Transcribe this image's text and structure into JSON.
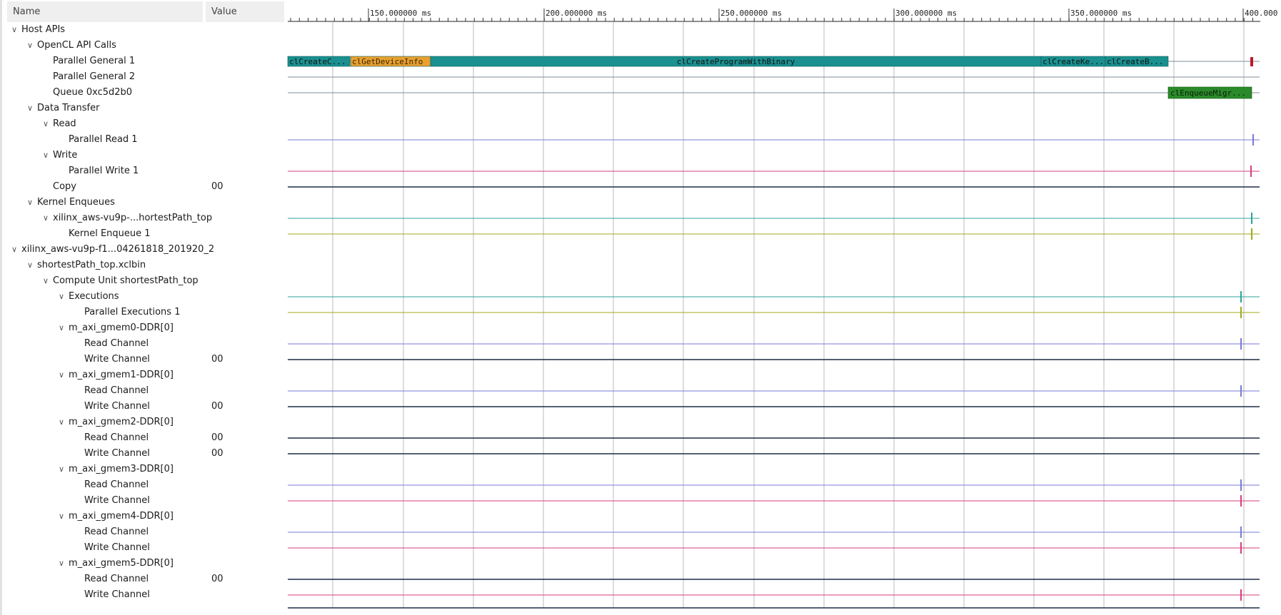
{
  "header": {
    "name_col": "Name",
    "value_col": "Value"
  },
  "timeline": {
    "unit": "ms",
    "major_ticks": [
      "150.000000 ms",
      "200.000000 ms",
      "250.000000 ms",
      "300.000000 ms",
      "350.000000 ms",
      "400.000"
    ]
  },
  "tree": [
    {
      "label": "Host APIs",
      "depth": 0,
      "expanded": true,
      "value": ""
    },
    {
      "label": "OpenCL API Calls",
      "depth": 1,
      "expanded": true,
      "value": ""
    },
    {
      "label": "Parallel General 1",
      "depth": 2,
      "value": ""
    },
    {
      "label": "Parallel General 2",
      "depth": 2,
      "value": ""
    },
    {
      "label": "Queue 0xc5d2b0",
      "depth": 2,
      "value": ""
    },
    {
      "label": "Data Transfer",
      "depth": 1,
      "expanded": true,
      "value": ""
    },
    {
      "label": "Read",
      "depth": 2,
      "expanded": true,
      "value": ""
    },
    {
      "label": "Parallel Read 1",
      "depth": 3,
      "value": ""
    },
    {
      "label": "Write",
      "depth": 2,
      "expanded": true,
      "value": ""
    },
    {
      "label": "Parallel Write 1",
      "depth": 3,
      "value": ""
    },
    {
      "label": "Copy",
      "depth": 2,
      "value": "00"
    },
    {
      "label": "Kernel Enqueues",
      "depth": 1,
      "expanded": true,
      "value": ""
    },
    {
      "label": "xilinx_aws-vu9p-...hortestPath_top",
      "depth": 2,
      "expanded": true,
      "value": ""
    },
    {
      "label": "Kernel Enqueue 1",
      "depth": 3,
      "value": ""
    },
    {
      "label": "xilinx_aws-vu9p-f1...04261818_201920_2",
      "depth": 0,
      "expanded": true,
      "value": ""
    },
    {
      "label": "shortestPath_top.xclbin",
      "depth": 1,
      "expanded": true,
      "value": ""
    },
    {
      "label": "Compute Unit shortestPath_top",
      "depth": 2,
      "expanded": true,
      "value": ""
    },
    {
      "label": "Executions",
      "depth": 3,
      "expanded": true,
      "value": ""
    },
    {
      "label": "Parallel Executions 1",
      "depth": 4,
      "value": ""
    },
    {
      "label": "m_axi_gmem0-DDR[0]",
      "depth": 3,
      "expanded": true,
      "value": ""
    },
    {
      "label": "Read Channel",
      "depth": 4,
      "value": ""
    },
    {
      "label": "Write Channel",
      "depth": 4,
      "value": "00"
    },
    {
      "label": "m_axi_gmem1-DDR[0]",
      "depth": 3,
      "expanded": true,
      "value": ""
    },
    {
      "label": "Read Channel",
      "depth": 4,
      "value": ""
    },
    {
      "label": "Write Channel",
      "depth": 4,
      "value": "00"
    },
    {
      "label": "m_axi_gmem2-DDR[0]",
      "depth": 3,
      "expanded": true,
      "value": ""
    },
    {
      "label": "Read Channel",
      "depth": 4,
      "value": "00"
    },
    {
      "label": "Write Channel",
      "depth": 4,
      "value": "00"
    },
    {
      "label": "m_axi_gmem3-DDR[0]",
      "depth": 3,
      "expanded": true,
      "value": ""
    },
    {
      "label": "Read Channel",
      "depth": 4,
      "value": ""
    },
    {
      "label": "Write Channel",
      "depth": 4,
      "value": ""
    },
    {
      "label": "m_axi_gmem4-DDR[0]",
      "depth": 3,
      "expanded": true,
      "value": ""
    },
    {
      "label": "Read Channel",
      "depth": 4,
      "value": ""
    },
    {
      "label": "Write Channel",
      "depth": 4,
      "value": ""
    },
    {
      "label": "m_axi_gmem5-DDR[0]",
      "depth": 3,
      "expanded": true,
      "value": ""
    },
    {
      "label": "Read Channel",
      "depth": 4,
      "value": "00"
    },
    {
      "label": "Write Channel",
      "depth": 4,
      "value": ""
    }
  ],
  "api_calls": [
    {
      "label": "clCreateC...",
      "color": "#1a9090"
    },
    {
      "label": "clGetDeviceInfo",
      "color": "#e8a030"
    },
    {
      "label": "clCreateProgramWithBinary",
      "color": "#1a9090"
    },
    {
      "label": "clCreateKe...",
      "color": "#1a9090"
    },
    {
      "label": "clCreateB...",
      "color": "#1a9090"
    }
  ],
  "queue_call": {
    "label": "clEnqueueMigr...",
    "color": "#2a8a2a"
  },
  "colors": {
    "grid": "#bbbbbb",
    "api_line": "#7f8c9a",
    "read": "#7a7ad8",
    "write": "#d63d7e",
    "copy": "#1b2b45",
    "teal": "#29a39a",
    "olive": "#a1a81a",
    "marker_red": "#c0182a"
  }
}
